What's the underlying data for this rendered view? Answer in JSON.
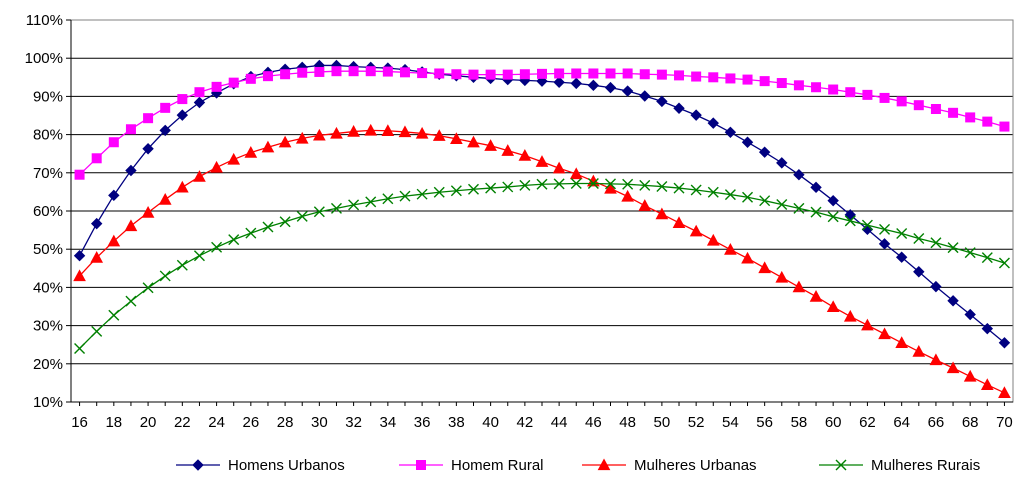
{
  "chart_data": {
    "type": "line",
    "title": "",
    "xlabel": "",
    "ylabel": "",
    "x": [
      16,
      17,
      18,
      19,
      20,
      21,
      22,
      23,
      24,
      25,
      26,
      27,
      28,
      29,
      30,
      31,
      32,
      33,
      34,
      35,
      36,
      37,
      38,
      39,
      40,
      41,
      42,
      43,
      44,
      45,
      46,
      47,
      48,
      49,
      50,
      51,
      52,
      53,
      54,
      55,
      56,
      57,
      58,
      59,
      60,
      61,
      62,
      63,
      64,
      65,
      66,
      67,
      68,
      69,
      70
    ],
    "x_ticks": [
      16,
      18,
      20,
      22,
      24,
      26,
      28,
      30,
      32,
      34,
      36,
      38,
      40,
      42,
      44,
      46,
      48,
      50,
      52,
      54,
      56,
      58,
      60,
      62,
      64,
      66,
      68,
      70
    ],
    "x_tick_labels": [
      "16",
      "18",
      "20",
      "22",
      "24",
      "26",
      "28",
      "30",
      "32",
      "34",
      "36",
      "38",
      "40",
      "42",
      "44",
      "46",
      "48",
      "50",
      "52",
      "54",
      "56",
      "58",
      "60",
      "62",
      "64",
      "66",
      "68",
      "70"
    ],
    "ylim": [
      0.1,
      1.1
    ],
    "y_ticks": [
      0.1,
      0.2,
      0.3,
      0.4,
      0.5,
      0.6,
      0.7,
      0.8,
      0.9,
      1.0,
      1.1
    ],
    "y_tick_labels": [
      "10%",
      "20%",
      "30%",
      "40%",
      "50%",
      "60%",
      "70%",
      "80%",
      "90%",
      "100%",
      "110%"
    ],
    "grid": "horizontal",
    "legend_position": "bottom",
    "series": [
      {
        "name": "Homens Urbanos",
        "color": "#000080",
        "marker": "diamond",
        "values": [
          0.483,
          0.567,
          0.641,
          0.706,
          0.763,
          0.811,
          0.851,
          0.884,
          0.909,
          0.933,
          0.952,
          0.963,
          0.971,
          0.976,
          0.981,
          0.981,
          0.978,
          0.976,
          0.974,
          0.97,
          0.964,
          0.958,
          0.954,
          0.95,
          0.947,
          0.944,
          0.942,
          0.94,
          0.937,
          0.934,
          0.929,
          0.923,
          0.914,
          0.901,
          0.887,
          0.869,
          0.851,
          0.83,
          0.806,
          0.78,
          0.754,
          0.726,
          0.695,
          0.662,
          0.627,
          0.59,
          0.552,
          0.514,
          0.479,
          0.441,
          0.402,
          0.365,
          0.329,
          0.292,
          0.255
        ]
      },
      {
        "name": "Homem Rural",
        "color": "#FF00FF",
        "marker": "square",
        "values": [
          0.695,
          0.738,
          0.78,
          0.814,
          0.843,
          0.87,
          0.893,
          0.911,
          0.925,
          0.936,
          0.946,
          0.953,
          0.958,
          0.962,
          0.964,
          0.966,
          0.966,
          0.966,
          0.965,
          0.963,
          0.961,
          0.96,
          0.958,
          0.957,
          0.957,
          0.957,
          0.958,
          0.959,
          0.96,
          0.96,
          0.96,
          0.96,
          0.96,
          0.958,
          0.957,
          0.955,
          0.952,
          0.95,
          0.947,
          0.944,
          0.94,
          0.935,
          0.929,
          0.924,
          0.918,
          0.911,
          0.904,
          0.896,
          0.887,
          0.877,
          0.867,
          0.857,
          0.845,
          0.834,
          0.821
        ]
      },
      {
        "name": "Mulheres Urbanas",
        "color": "#FF0000",
        "marker": "triangle",
        "values": [
          0.43,
          0.478,
          0.521,
          0.561,
          0.596,
          0.63,
          0.662,
          0.69,
          0.714,
          0.735,
          0.753,
          0.767,
          0.78,
          0.79,
          0.798,
          0.803,
          0.808,
          0.811,
          0.81,
          0.807,
          0.803,
          0.797,
          0.789,
          0.78,
          0.771,
          0.758,
          0.745,
          0.729,
          0.712,
          0.697,
          0.678,
          0.659,
          0.638,
          0.614,
          0.592,
          0.569,
          0.547,
          0.523,
          0.499,
          0.476,
          0.451,
          0.426,
          0.401,
          0.376,
          0.349,
          0.324,
          0.301,
          0.278,
          0.255,
          0.232,
          0.21,
          0.189,
          0.167,
          0.145,
          0.124
        ]
      },
      {
        "name": "Mulheres Rurais",
        "color": "#008000",
        "marker": "x",
        "values": [
          0.24,
          0.285,
          0.327,
          0.364,
          0.399,
          0.43,
          0.458,
          0.483,
          0.505,
          0.525,
          0.542,
          0.558,
          0.572,
          0.586,
          0.598,
          0.607,
          0.616,
          0.624,
          0.632,
          0.639,
          0.644,
          0.649,
          0.653,
          0.657,
          0.66,
          0.663,
          0.667,
          0.67,
          0.671,
          0.672,
          0.672,
          0.671,
          0.67,
          0.667,
          0.664,
          0.66,
          0.655,
          0.649,
          0.643,
          0.636,
          0.627,
          0.617,
          0.607,
          0.597,
          0.585,
          0.574,
          0.563,
          0.552,
          0.541,
          0.528,
          0.517,
          0.504,
          0.491,
          0.478,
          0.464
        ]
      }
    ]
  }
}
